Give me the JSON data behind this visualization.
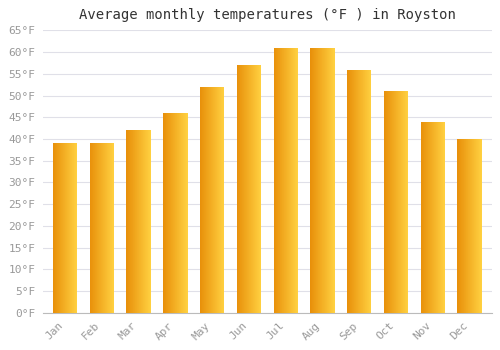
{
  "title": "Average monthly temperatures (°F ) in Royston",
  "months": [
    "Jan",
    "Feb",
    "Mar",
    "Apr",
    "May",
    "Jun",
    "Jul",
    "Aug",
    "Sep",
    "Oct",
    "Nov",
    "Dec"
  ],
  "values": [
    39,
    39,
    42,
    46,
    52,
    57,
    61,
    61,
    56,
    51,
    44,
    40
  ],
  "ylim": [
    0,
    65
  ],
  "yticks": [
    0,
    5,
    10,
    15,
    20,
    25,
    30,
    35,
    40,
    45,
    50,
    55,
    60,
    65
  ],
  "ytick_labels": [
    "0°F",
    "5°F",
    "10°F",
    "15°F",
    "20°F",
    "25°F",
    "30°F",
    "35°F",
    "40°F",
    "45°F",
    "50°F",
    "55°F",
    "60°F",
    "65°F"
  ],
  "bar_color_left": "#E8900A",
  "bar_color_right": "#FFD040",
  "background_color": "#FFFFFF",
  "grid_color": "#E0E0E8",
  "title_fontsize": 10,
  "tick_fontsize": 8,
  "tick_color": "#999999",
  "title_color": "#333333",
  "bar_width": 0.65,
  "font_family": "monospace"
}
